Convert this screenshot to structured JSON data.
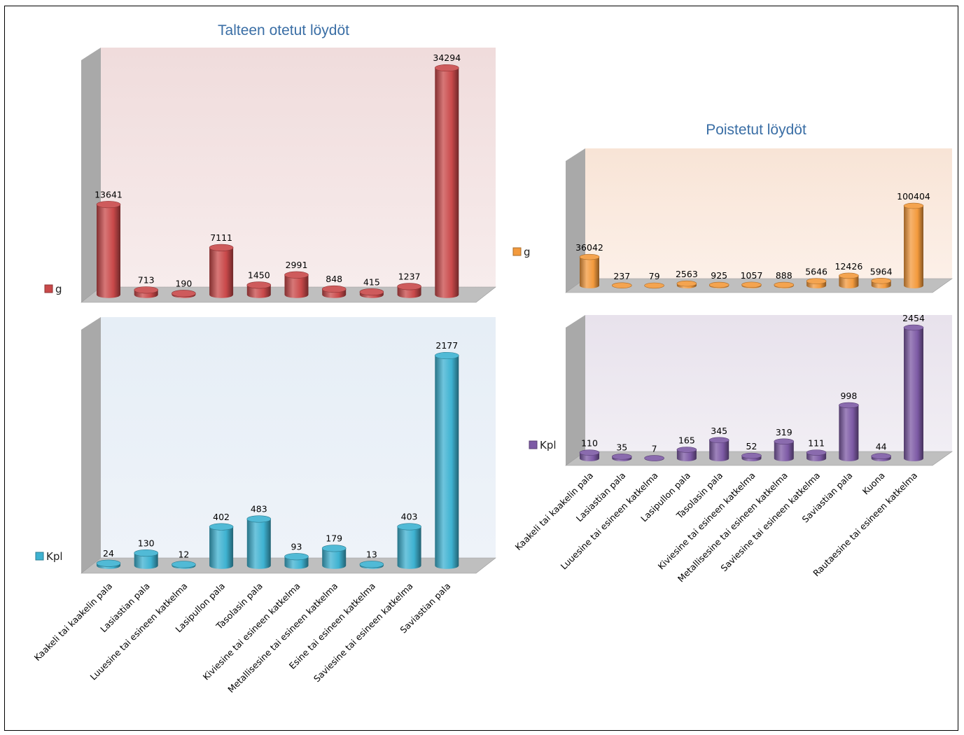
{
  "titles": {
    "left": "Talteen otetut löydöt",
    "right": "Poistetut löydöt"
  },
  "colors": {
    "red": "#c9494a",
    "cyan": "#3eb2d1",
    "orange": "#f39a3d",
    "purple": "#7d5aa5"
  },
  "chart_data": [
    {
      "type": "bar",
      "title": "Talteen otetut löydöt",
      "series": [
        {
          "name": "g",
          "values": [
            13641,
            713,
            190,
            7111,
            1450,
            2991,
            848,
            415,
            1237,
            34294
          ]
        }
      ],
      "categories": [
        "Kaakeli tai kaakelin pala",
        "Lasiastian pala",
        "Luuesine tai esineen katkelma",
        "Lasipullon pala",
        "Tasolasin pala",
        "Kiviesine tai esineen katkelma",
        "Metallisesine tai esineen katkelma",
        "Esine tai esineen katkelma",
        "Saviesine tai esineen katkelma",
        "Saviastian pala"
      ],
      "ylim": [
        0,
        34294
      ],
      "legend": "left",
      "color": "#c9494a"
    },
    {
      "type": "bar",
      "series": [
        {
          "name": "Kpl",
          "values": [
            24,
            130,
            12,
            402,
            483,
            93,
            179,
            13,
            403,
            2177
          ]
        }
      ],
      "categories": [
        "Kaakeli tai kaakelin pala",
        "Lasiastian pala",
        "Luuesine tai esineen katkelma",
        "Lasipullon pala",
        "Tasolasin pala",
        "Kiviesine tai esineen katkelma",
        "Metallisesine tai esineen katkelma",
        "Esine tai esineen katkelma",
        "Saviesine tai esineen katkelma",
        "Saviastian pala"
      ],
      "ylim": [
        0,
        2177
      ],
      "legend": "left",
      "color": "#3eb2d1"
    },
    {
      "type": "bar",
      "title": "Poistetut löydöt",
      "series": [
        {
          "name": "g",
          "values": [
            36042,
            237,
            79,
            2563,
            925,
            1057,
            888,
            5646,
            12426,
            5964,
            100404
          ]
        }
      ],
      "categories": [
        "Kaakeli tai kaakelin pala",
        "Lasiastian pala",
        "Luuesine tai esineen katkelma",
        "Lasipullon pala",
        "Tasolasin pala",
        "Kiviesine tai esineen katkelma",
        "Metallisesine tai esineen katkelma",
        "Saviesine tai esineen katkelma",
        "Saviastian pala",
        "Kuona",
        "Rautaesine tai esineen katkelma"
      ],
      "ylim": [
        0,
        100404
      ],
      "legend": "left",
      "color": "#f39a3d"
    },
    {
      "type": "bar",
      "series": [
        {
          "name": "Kpl",
          "values": [
            110,
            35,
            7,
            165,
            345,
            52,
            319,
            111,
            998,
            44,
            2454
          ]
        }
      ],
      "categories": [
        "Kaakeli tai kaakelin pala",
        "Lasiastian pala",
        "Luuesine tai esineen katkelma",
        "Lasipullon pala",
        "Tasolasin pala",
        "Kiviesine tai esineen katkelma",
        "Metallisesine tai esineen katkelma",
        "Saviesine tai esineen katkelma",
        "Saviastian pala",
        "Kuona",
        "Rautaesine tai esineen katkelma"
      ],
      "ylim": [
        0,
        2454
      ],
      "legend": "left",
      "color": "#7d5aa5"
    }
  ]
}
